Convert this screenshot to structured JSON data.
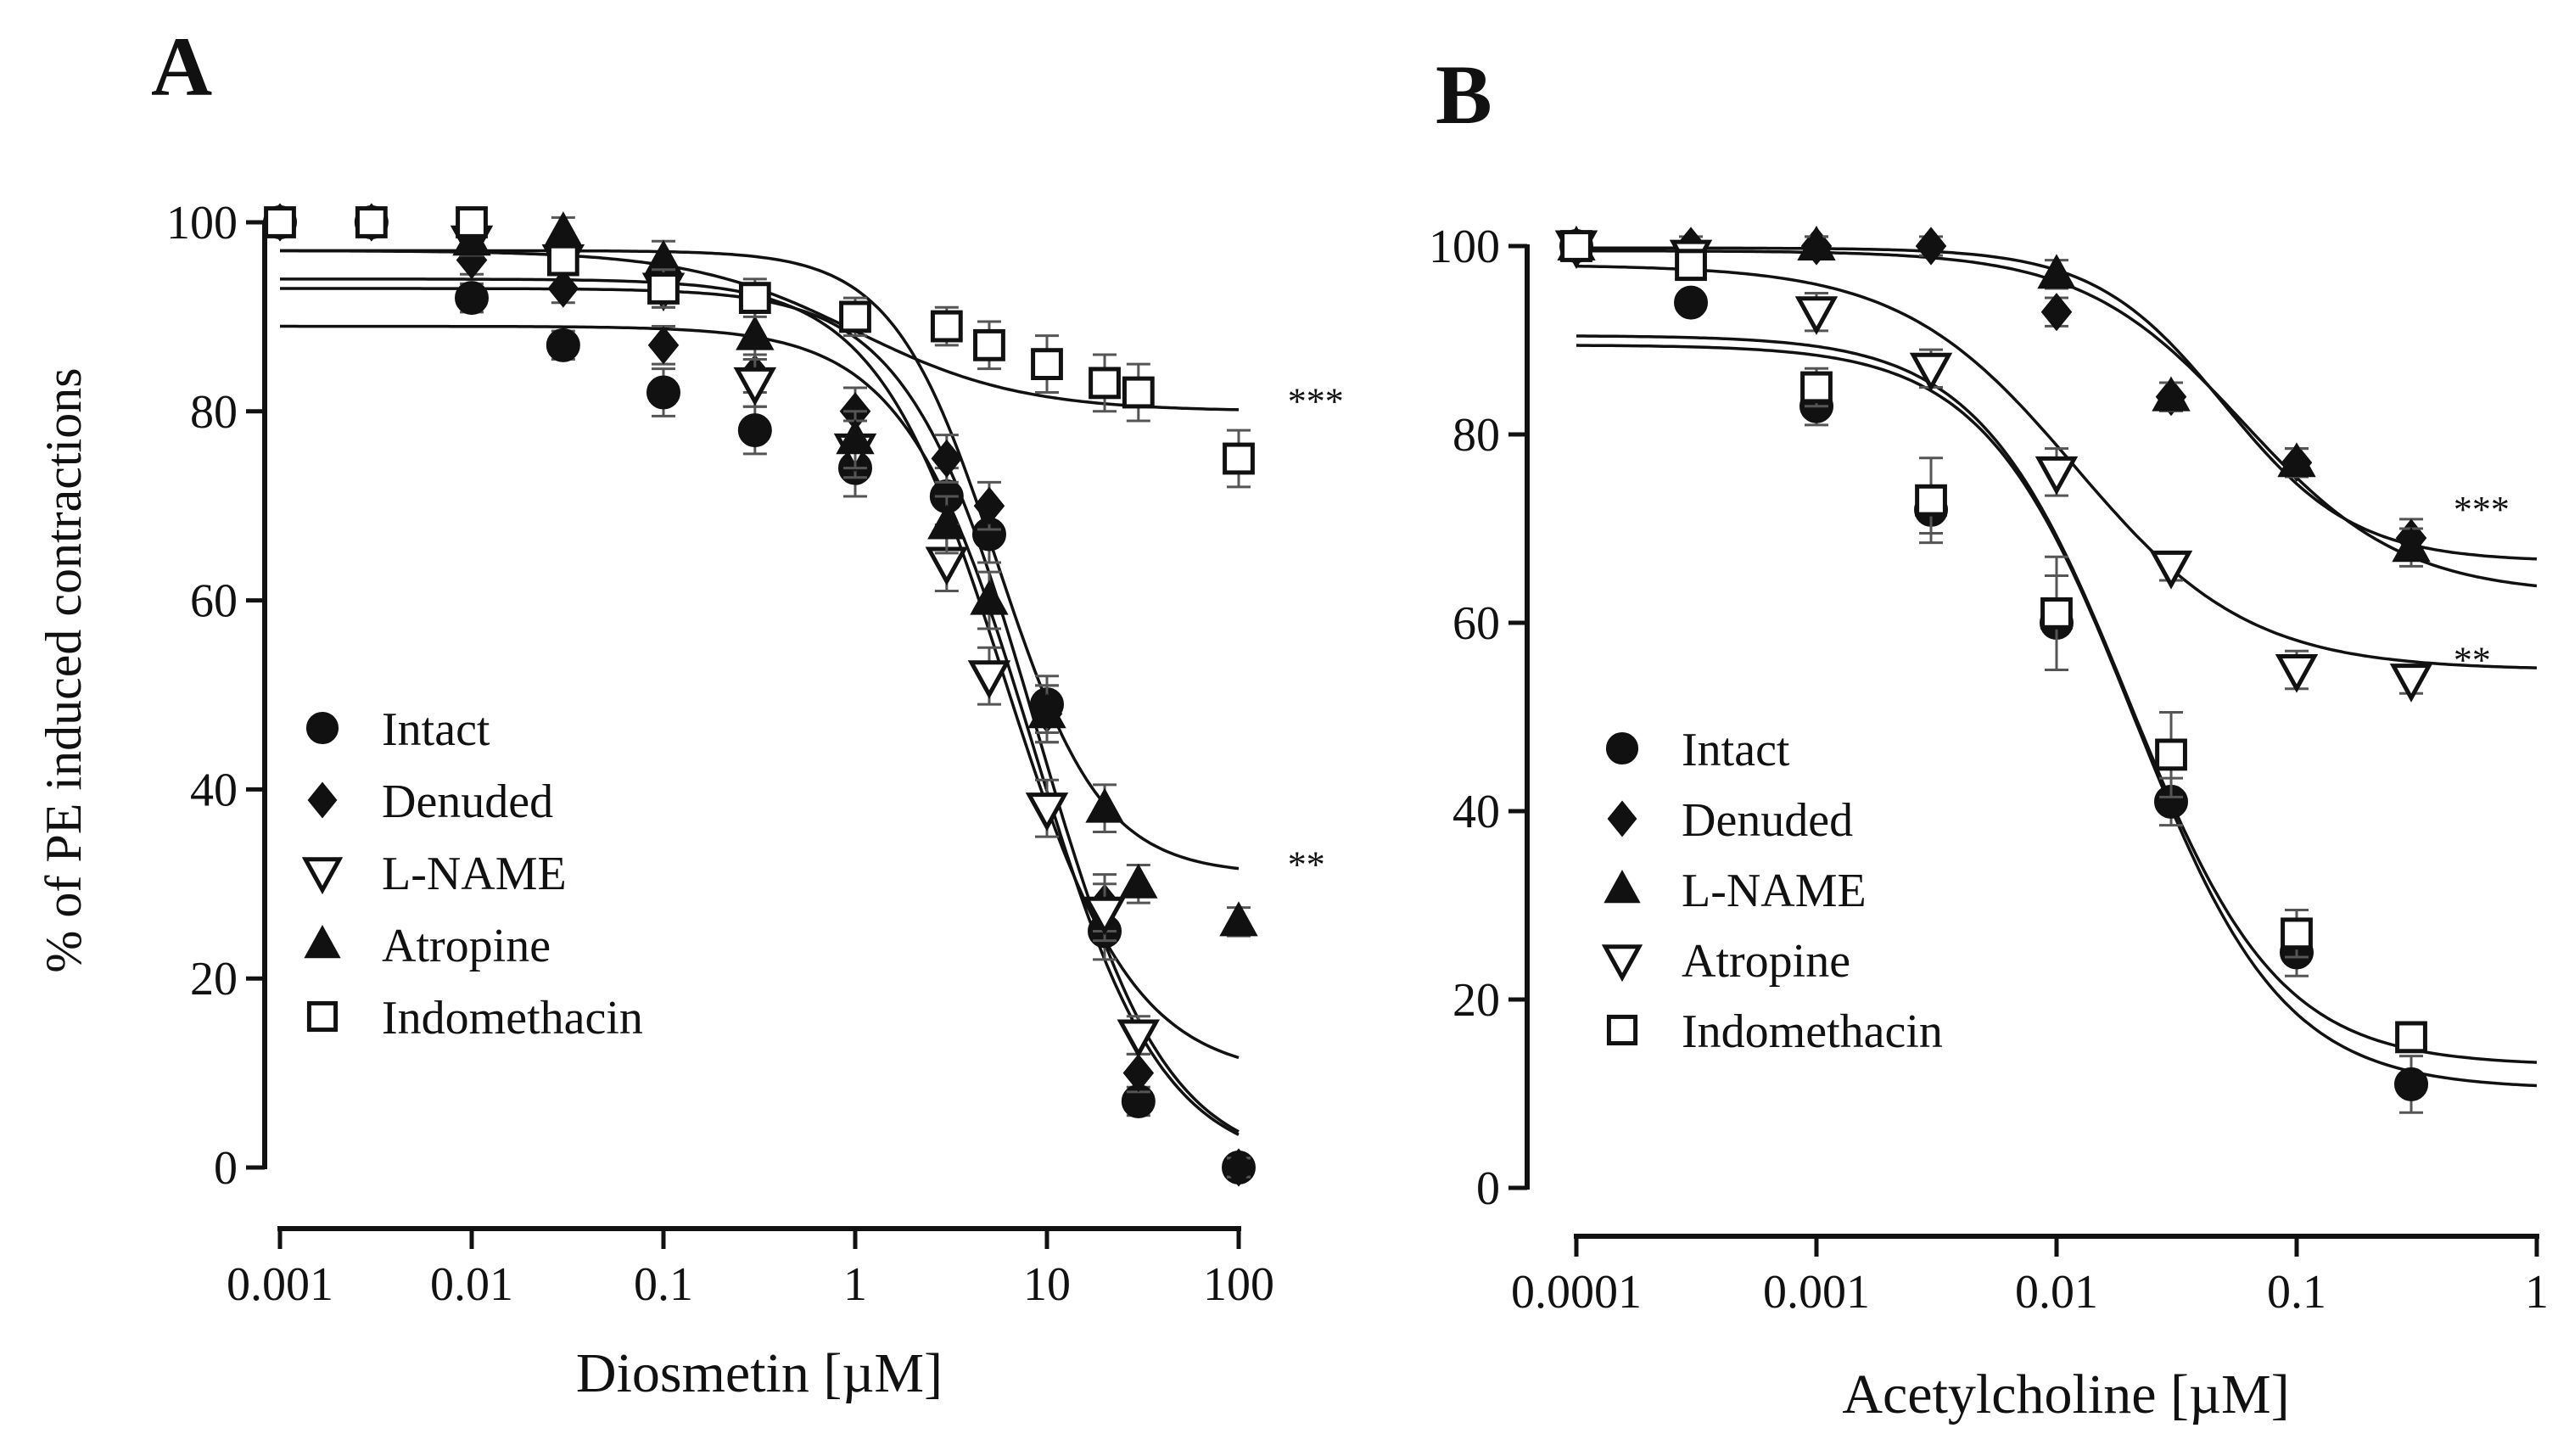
{
  "chart_data": [
    {
      "panel_label": "A",
      "type": "scatter",
      "title": "",
      "xlabel": "Diosmetin [µM]",
      "ylabel": "% of PE induced contractions",
      "xscale": "log",
      "xlim": [
        0.001,
        100
      ],
      "ylim": [
        0,
        100
      ],
      "x_ticks": [
        0.001,
        0.01,
        0.1,
        1,
        10,
        100
      ],
      "x_tick_labels": [
        "0.001",
        "0.01",
        "0.1",
        "1",
        "10",
        "100"
      ],
      "y_ticks": [
        0,
        20,
        40,
        60,
        80,
        100
      ],
      "y_tick_labels": [
        "0",
        "20",
        "40",
        "60",
        "80",
        "100"
      ],
      "legend_position": "left-middle",
      "series": [
        {
          "name": "Intact",
          "marker": "circle-filled",
          "x": [
            0.001,
            0.003,
            0.01,
            0.03,
            0.1,
            0.3,
            1,
            3,
            5,
            10,
            20,
            30,
            100
          ],
          "y": [
            100,
            100,
            92,
            87,
            82,
            78,
            74,
            71,
            67,
            49,
            25,
            7,
            0
          ],
          "err": [
            0,
            0,
            1.5,
            1.5,
            2.5,
            2.5,
            3,
            3,
            3,
            3,
            3,
            1.5,
            1
          ],
          "fit": {
            "top": 89,
            "bottom": 0,
            "ec50": 8.5,
            "hill": 1.3
          }
        },
        {
          "name": "Denuded",
          "marker": "diamond-filled",
          "x": [
            0.001,
            0.003,
            0.01,
            0.03,
            0.1,
            0.3,
            1,
            3,
            5,
            10,
            20,
            30,
            100
          ],
          "y": [
            100,
            100,
            96,
            93,
            87,
            84,
            80,
            75,
            70,
            48,
            28,
            10,
            0
          ],
          "err": [
            0,
            0,
            1.5,
            1.5,
            2,
            2,
            2.5,
            2.5,
            2.5,
            3,
            3,
            2,
            1
          ],
          "fit": {
            "top": 93,
            "bottom": 0,
            "ec50": 8.8,
            "hill": 1.3
          }
        },
        {
          "name": "L-NAME",
          "marker": "triangle-down-open",
          "x": [
            0.01,
            0.03,
            0.1,
            0.3,
            1,
            3,
            5,
            10,
            20,
            30
          ],
          "y": [
            98,
            96,
            93,
            83,
            76,
            64,
            52,
            38,
            27,
            14
          ],
          "err": [
            1.5,
            1.5,
            2,
            2.5,
            3,
            3,
            3,
            3,
            3,
            2
          ],
          "fit": {
            "top": 94,
            "bottom": 9.5,
            "ec50": 6.0,
            "hill": 1.3
          }
        },
        {
          "name": "Atropine",
          "marker": "triangle-up-filled",
          "x": [
            0.01,
            0.03,
            0.1,
            0.3,
            1,
            3,
            5,
            10,
            20,
            30,
            100
          ],
          "y": [
            98,
            99,
            96,
            88,
            77,
            68,
            60,
            48,
            38,
            30,
            26
          ],
          "err": [
            1.5,
            1.5,
            2,
            2.5,
            3,
            3,
            3,
            3,
            2.5,
            2,
            1.5
          ],
          "fit": {
            "top": 97,
            "bottom": 31,
            "ec50": 5.5,
            "hill": 1.6
          }
        },
        {
          "name": "Indomethacin",
          "marker": "square-open",
          "x": [
            0.001,
            0.003,
            0.01,
            0.03,
            0.1,
            0.3,
            1,
            3,
            5,
            10,
            20,
            30,
            100
          ],
          "y": [
            100,
            100,
            100,
            96,
            93,
            92,
            90,
            89,
            87,
            85,
            83,
            82,
            75
          ],
          "err": [
            0,
            0,
            1.5,
            1.5,
            2,
            2,
            2,
            2,
            2.5,
            3,
            3,
            3,
            3
          ],
          "fit": {
            "top": 97,
            "bottom": 80,
            "ec50": 1.0,
            "hill": 1.0
          }
        }
      ],
      "annotations": [
        {
          "text": "***",
          "x": 180,
          "y": 81
        },
        {
          "text": "**",
          "x": 180,
          "y": 32
        }
      ]
    },
    {
      "panel_label": "B",
      "type": "scatter",
      "title": "",
      "xlabel": "Acetylcholine [µM]",
      "ylabel": "",
      "xscale": "log",
      "xlim": [
        0.0001,
        1
      ],
      "ylim": [
        0,
        100
      ],
      "x_ticks": [
        0.0001,
        0.001,
        0.01,
        0.1,
        1
      ],
      "x_tick_labels": [
        "0.0001",
        "0.001",
        "0.01",
        "0.1",
        "1"
      ],
      "y_ticks": [
        0,
        20,
        40,
        60,
        80,
        100
      ],
      "y_tick_labels": [
        "0",
        "20",
        "40",
        "60",
        "80",
        "100"
      ],
      "legend_position": "left-lower",
      "series": [
        {
          "name": "Intact",
          "marker": "circle-filled",
          "x": [
            0.0001,
            0.0003,
            0.001,
            0.003,
            0.01,
            0.03,
            0.1,
            0.3
          ],
          "y": [
            100,
            94,
            83,
            72,
            60,
            41,
            25,
            11
          ],
          "err": [
            0,
            1,
            2,
            2.5,
            5,
            2.5,
            2.5,
            3
          ],
          "fit": {
            "top": 89.5,
            "bottom": 10.5,
            "ec50": 0.021,
            "hill": 1.4
          }
        },
        {
          "name": "Denuded",
          "marker": "diamond-filled",
          "x": [
            0.0001,
            0.0003,
            0.001,
            0.003,
            0.01,
            0.03,
            0.1,
            0.3
          ],
          "y": [
            100,
            100,
            100,
            100,
            93,
            84,
            77,
            69
          ],
          "err": [
            0,
            1,
            1,
            1,
            1.5,
            1.5,
            1.5,
            2
          ],
          "fit": {
            "top": 99.5,
            "bottom": 63,
            "ec50": 0.06,
            "hill": 1.3
          }
        },
        {
          "name": "L-NAME",
          "marker": "triangle-up-filled",
          "x": [
            0.0001,
            0.001,
            0.01,
            0.03,
            0.1,
            0.3
          ],
          "y": [
            100,
            100,
            97,
            84,
            77,
            68
          ],
          "err": [
            0,
            1,
            1.5,
            1.5,
            1.5,
            2
          ],
          "fit": {
            "top": 99.8,
            "bottom": 66.5,
            "ec50": 0.05,
            "hill": 1.6
          }
        },
        {
          "name": "Atropine",
          "marker": "triangle-down-open",
          "x": [
            0.0001,
            0.0003,
            0.001,
            0.003,
            0.01,
            0.03,
            0.1,
            0.3
          ],
          "y": [
            100,
            99,
            93,
            87,
            76,
            66,
            55,
            54
          ],
          "err": [
            0,
            1,
            2,
            2,
            2.5,
            1.5,
            2,
            1.5
          ],
          "fit": {
            "top": 98,
            "bottom": 55,
            "ec50": 0.012,
            "hill": 1.2
          }
        },
        {
          "name": "Indomethacin",
          "marker": "square-open",
          "x": [
            0.0001,
            0.0003,
            0.001,
            0.003,
            0.01,
            0.03,
            0.1,
            0.3
          ],
          "y": [
            100,
            98,
            85,
            73,
            61,
            46,
            27,
            16
          ],
          "err": [
            0,
            1,
            2,
            4.5,
            6,
            4.5,
            2.5,
            1.5
          ],
          "fit": {
            "top": 90.5,
            "bottom": 13,
            "ec50": 0.02,
            "hill": 1.4
          }
        }
      ],
      "annotations": [
        {
          "text": "***",
          "x": 0.45,
          "y": 72
        },
        {
          "text": "**",
          "x": 0.45,
          "y": 56
        }
      ]
    }
  ]
}
